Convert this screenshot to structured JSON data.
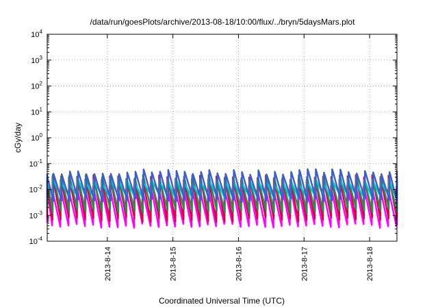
{
  "chart_data": {
    "type": "line",
    "title": "/data/run/goesPlots/archive/2013-08-18/10:00/flux/../bryn/5daysMars.plot",
    "xlabel": "Coordinated Universal Time (UTC)",
    "ylabel": "cGy/day",
    "x_range": [
      "2013-08-13T02:00",
      "2013-08-18T10:00"
    ],
    "x_ticks": [
      "2013-8-14",
      "2013-8-15",
      "2013-8-16",
      "2013-8-17",
      "2013-8-18"
    ],
    "y_scale": "log",
    "ylim": [
      0.0001,
      10000
    ],
    "y_ticks": [
      {
        "base": "10",
        "exp": "-4"
      },
      {
        "base": "10",
        "exp": "-3"
      },
      {
        "base": "10",
        "exp": "-2"
      },
      {
        "base": "10",
        "exp": "-1"
      },
      {
        "base": "10",
        "exp": "0"
      },
      {
        "base": "10",
        "exp": "1"
      },
      {
        "base": "10",
        "exp": "2"
      },
      {
        "base": "10",
        "exp": "3"
      },
      {
        "base": "10",
        "exp": "4"
      }
    ],
    "grid": true,
    "legend": "none",
    "sawtooth_period_hours": 3,
    "series": [
      {
        "color": "#ff00ff",
        "peak": 0.012,
        "trough": 0.0004
      },
      {
        "color": "#dd0044",
        "peak": 0.03,
        "trough": 0.0007
      },
      {
        "color": "#2e8b57",
        "peak": 0.03,
        "trough": 0.0015
      },
      {
        "color": "#00cccc",
        "peak": 0.022,
        "trough": 0.005
      },
      {
        "color": "#3a5fcd",
        "peak": 0.05,
        "trough": 0.004
      }
    ]
  }
}
